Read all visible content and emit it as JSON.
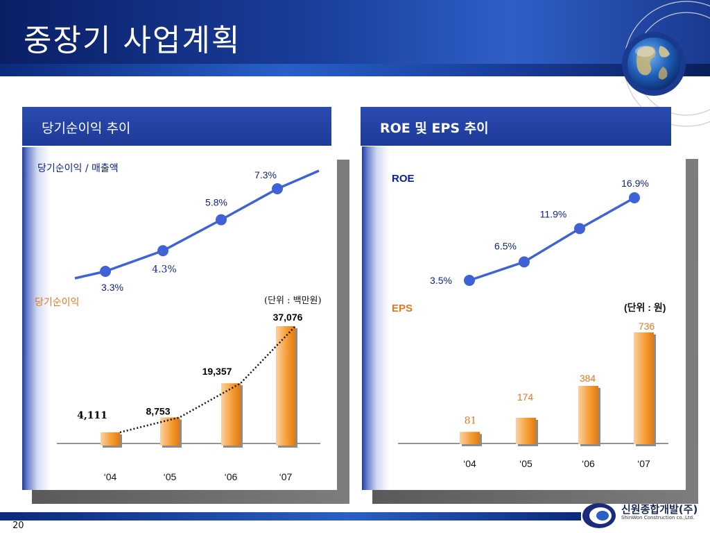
{
  "title": "중장기 사업계획",
  "page_number": "20",
  "company": {
    "name_ko": "신원종합개발(주)",
    "name_en": "ShinWon Construction co.,Ltd."
  },
  "left_panel": {
    "heading": "당기순이익 추이",
    "line_label": "당기순이익 / 매출액",
    "bar_label": "당기순이익",
    "unit": "(단위 : 백만원)"
  },
  "right_panel": {
    "heading": "ROE 및 EPS 추이",
    "line_label": "ROE",
    "bar_label": "EPS",
    "unit": "(단위 : 원)"
  },
  "chart_data": [
    {
      "type": "line",
      "title": "",
      "categories": [
        "'04",
        "'05",
        "'06",
        "'07"
      ],
      "series": [
        {
          "name": "당기순이익 / 매출액",
          "values": [
            3.3,
            4.3,
            5.8,
            7.3
          ],
          "labels": [
            "3.3%",
            "4.3%",
            "5.8%",
            "7.3%"
          ]
        }
      ],
      "color": "#3f63d6"
    },
    {
      "type": "bar",
      "title": "",
      "categories": [
        "‘04",
        "‘05",
        "‘06",
        "‘07"
      ],
      "series": [
        {
          "name": "당기순이익",
          "values": [
            4111,
            8753,
            19357,
            37076
          ],
          "labels": [
            "4,111",
            "8,753",
            "19,357",
            "37,076"
          ]
        }
      ],
      "ylim": [
        0,
        37076
      ],
      "color": "#f59a2f"
    },
    {
      "type": "line",
      "title": "",
      "categories": [
        "'04",
        "'05",
        "'06",
        "'07"
      ],
      "series": [
        {
          "name": "ROE",
          "values": [
            3.5,
            6.5,
            11.9,
            16.9
          ],
          "labels": [
            "3.5%",
            "6.5%",
            "11.9%",
            "16.9%"
          ]
        }
      ],
      "color": "#3f63d6"
    },
    {
      "type": "bar",
      "title": "",
      "categories": [
        "‘04",
        "‘05",
        "‘06",
        "‘07"
      ],
      "series": [
        {
          "name": "EPS",
          "values": [
            81,
            174,
            384,
            736
          ],
          "labels": [
            "81",
            "174",
            "384",
            "736"
          ]
        }
      ],
      "ylim": [
        0,
        736
      ],
      "color": "#f59a2f"
    }
  ],
  "colors": {
    "header_dark": "#0a1f66",
    "panel_head": "#1d3a97",
    "line_blue": "#3f63d6",
    "bar_orange": "#f59a2f",
    "label_orange": "#e8761e",
    "label_navy": "#0b1f8a"
  }
}
